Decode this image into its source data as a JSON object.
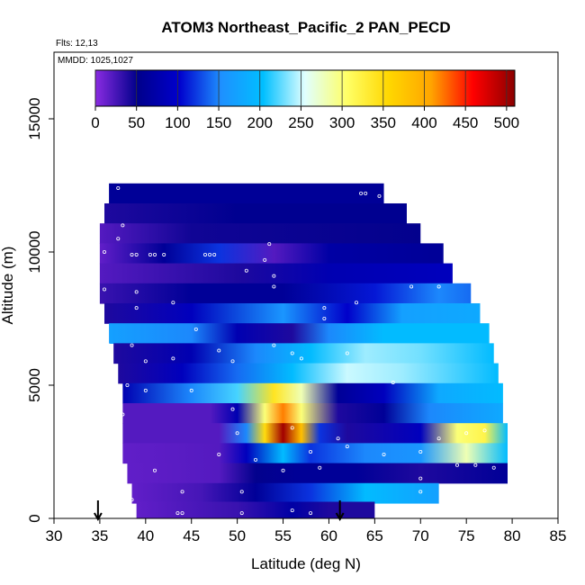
{
  "chart_data": {
    "type": "heatmap",
    "title": "ATOM3 Northeast_Pacific_2 PAN_PECD",
    "annotations": [
      "Flts: 12,13",
      "MMDD: 1025,1027"
    ],
    "xlabel": "Latitude (deg N)",
    "ylabel": "Altitude (m)",
    "xlim": [
      30,
      85
    ],
    "ylim": [
      0,
      17500
    ],
    "x_ticks": [
      30,
      35,
      40,
      45,
      50,
      55,
      60,
      65,
      70,
      75,
      80,
      85
    ],
    "y_ticks": [
      0,
      5000,
      10000,
      15000
    ],
    "colorbar": {
      "min": 0,
      "max": 510,
      "ticks": [
        0,
        50,
        100,
        150,
        200,
        250,
        300,
        350,
        400,
        450,
        500
      ],
      "colors": [
        "#8a2be2",
        "#00008b",
        "#0000cd",
        "#1e90ff",
        "#00bfff",
        "#e0ffff",
        "#ffff66",
        "#ffd700",
        "#ffa500",
        "#ff0000",
        "#8b0000"
      ]
    },
    "flight_arrows_lat": [
      34.8,
      61.2
    ],
    "layers": [
      {
        "alt": 12200,
        "lat_start": 36.0,
        "lat_end": 66.0,
        "values": [
          {
            "lat": 36,
            "v": 60
          },
          {
            "lat": 66,
            "v": 60
          }
        ]
      },
      {
        "alt": 11450,
        "lat_start": 35.5,
        "lat_end": 68.5,
        "values": [
          {
            "lat": 35.5,
            "v": 40
          },
          {
            "lat": 50,
            "v": 55
          },
          {
            "lat": 68.5,
            "v": 55
          }
        ]
      },
      {
        "alt": 10700,
        "lat_start": 35.0,
        "lat_end": 70.0,
        "values": [
          {
            "lat": 35,
            "v": 20
          },
          {
            "lat": 45,
            "v": 45
          },
          {
            "lat": 70,
            "v": 50
          }
        ]
      },
      {
        "alt": 9950,
        "lat_start": 35.0,
        "lat_end": 72.5,
        "values": [
          {
            "lat": 35,
            "v": 15
          },
          {
            "lat": 42,
            "v": 60
          },
          {
            "lat": 48,
            "v": 120
          },
          {
            "lat": 54,
            "v": 20
          },
          {
            "lat": 60,
            "v": 70
          },
          {
            "lat": 72.5,
            "v": 60
          }
        ]
      },
      {
        "alt": 9200,
        "lat_start": 35.0,
        "lat_end": 73.5,
        "values": [
          {
            "lat": 35,
            "v": 20
          },
          {
            "lat": 50,
            "v": 40
          },
          {
            "lat": 60,
            "v": 80
          },
          {
            "lat": 73.5,
            "v": 90
          }
        ]
      },
      {
        "alt": 8450,
        "lat_start": 35.0,
        "lat_end": 75.5,
        "values": [
          {
            "lat": 35,
            "v": 30
          },
          {
            "lat": 45,
            "v": 60
          },
          {
            "lat": 55,
            "v": 60
          },
          {
            "lat": 65,
            "v": 110
          },
          {
            "lat": 72,
            "v": 150
          },
          {
            "lat": 75.5,
            "v": 140
          }
        ]
      },
      {
        "alt": 7700,
        "lat_start": 35.5,
        "lat_end": 76.5,
        "values": [
          {
            "lat": 35.5,
            "v": 40
          },
          {
            "lat": 45,
            "v": 90
          },
          {
            "lat": 55,
            "v": 160
          },
          {
            "lat": 62,
            "v": 100
          },
          {
            "lat": 68,
            "v": 170
          },
          {
            "lat": 76.5,
            "v": 180
          }
        ]
      },
      {
        "alt": 6950,
        "lat_start": 36.0,
        "lat_end": 77.5,
        "values": [
          {
            "lat": 36,
            "v": 170
          },
          {
            "lat": 45,
            "v": 150
          },
          {
            "lat": 50,
            "v": 80
          },
          {
            "lat": 56,
            "v": 40
          },
          {
            "lat": 60,
            "v": 150
          },
          {
            "lat": 66,
            "v": 200
          },
          {
            "lat": 77.5,
            "v": 200
          }
        ]
      },
      {
        "alt": 6200,
        "lat_start": 36.5,
        "lat_end": 78.0,
        "values": [
          {
            "lat": 36.5,
            "v": 40
          },
          {
            "lat": 45,
            "v": 80
          },
          {
            "lat": 52,
            "v": 150
          },
          {
            "lat": 58,
            "v": 200
          },
          {
            "lat": 64,
            "v": 240
          },
          {
            "lat": 70,
            "v": 230
          },
          {
            "lat": 78,
            "v": 200
          }
        ]
      },
      {
        "alt": 5450,
        "lat_start": 37.0,
        "lat_end": 78.5,
        "values": [
          {
            "lat": 37,
            "v": 40
          },
          {
            "lat": 44,
            "v": 90
          },
          {
            "lat": 50,
            "v": 140
          },
          {
            "lat": 56,
            "v": 200
          },
          {
            "lat": 62,
            "v": 250
          },
          {
            "lat": 68,
            "v": 240
          },
          {
            "lat": 78.5,
            "v": 200
          }
        ]
      },
      {
        "alt": 4700,
        "lat_start": 37.5,
        "lat_end": 79.0,
        "values": [
          {
            "lat": 37.5,
            "v": 80
          },
          {
            "lat": 45,
            "v": 150
          },
          {
            "lat": 50,
            "v": 220
          },
          {
            "lat": 54,
            "v": 340
          },
          {
            "lat": 57,
            "v": 280
          },
          {
            "lat": 61,
            "v": 60
          },
          {
            "lat": 66,
            "v": 90
          },
          {
            "lat": 72,
            "v": 180
          },
          {
            "lat": 79,
            "v": 200
          }
        ]
      },
      {
        "alt": 3950,
        "lat_start": 37.5,
        "lat_end": 79.0,
        "values": [
          {
            "lat": 37.5,
            "v": 20
          },
          {
            "lat": 47,
            "v": 20
          },
          {
            "lat": 50,
            "v": 80
          },
          {
            "lat": 53,
            "v": 300
          },
          {
            "lat": 55,
            "v": 420
          },
          {
            "lat": 57,
            "v": 300
          },
          {
            "lat": 61,
            "v": 40
          },
          {
            "lat": 66,
            "v": 60
          },
          {
            "lat": 71,
            "v": 150
          },
          {
            "lat": 79,
            "v": 180
          }
        ]
      },
      {
        "alt": 3200,
        "lat_start": 37.5,
        "lat_end": 79.5,
        "values": [
          {
            "lat": 37.5,
            "v": 20
          },
          {
            "lat": 48,
            "v": 20
          },
          {
            "lat": 51,
            "v": 150
          },
          {
            "lat": 53,
            "v": 350
          },
          {
            "lat": 55,
            "v": 500
          },
          {
            "lat": 57,
            "v": 380
          },
          {
            "lat": 59,
            "v": 120
          },
          {
            "lat": 62,
            "v": 40
          },
          {
            "lat": 70,
            "v": 90
          },
          {
            "lat": 74,
            "v": 300
          },
          {
            "lat": 77,
            "v": 320
          },
          {
            "lat": 79.5,
            "v": 200
          }
        ]
      },
      {
        "alt": 2450,
        "lat_start": 37.5,
        "lat_end": 79.5,
        "values": [
          {
            "lat": 37.5,
            "v": 15
          },
          {
            "lat": 48,
            "v": 20
          },
          {
            "lat": 51,
            "v": 90
          },
          {
            "lat": 55,
            "v": 200
          },
          {
            "lat": 58,
            "v": 120
          },
          {
            "lat": 64,
            "v": 150
          },
          {
            "lat": 70,
            "v": 160
          },
          {
            "lat": 75,
            "v": 280
          },
          {
            "lat": 79.5,
            "v": 200
          }
        ]
      },
      {
        "alt": 1700,
        "lat_start": 38.0,
        "lat_end": 79.5,
        "values": [
          {
            "lat": 38,
            "v": 15
          },
          {
            "lat": 48,
            "v": 20
          },
          {
            "lat": 52,
            "v": 50
          },
          {
            "lat": 57,
            "v": 60
          },
          {
            "lat": 63,
            "v": 60
          },
          {
            "lat": 70,
            "v": 40
          },
          {
            "lat": 79.5,
            "v": 60
          }
        ]
      },
      {
        "alt": 950,
        "lat_start": 38.5,
        "lat_end": 72.0,
        "values": [
          {
            "lat": 38.5,
            "v": 15
          },
          {
            "lat": 46,
            "v": 25
          },
          {
            "lat": 52,
            "v": 60
          },
          {
            "lat": 58,
            "v": 120
          },
          {
            "lat": 64,
            "v": 200
          },
          {
            "lat": 72,
            "v": 170
          }
        ]
      },
      {
        "alt": 250,
        "lat_start": 39.0,
        "lat_end": 65.0,
        "values": [
          {
            "lat": 39,
            "v": 15
          },
          {
            "lat": 50,
            "v": 30
          },
          {
            "lat": 56,
            "v": 70
          },
          {
            "lat": 60,
            "v": 40
          },
          {
            "lat": 65,
            "v": 40
          }
        ]
      }
    ],
    "observations": [
      {
        "lat": 37,
        "alt": 12400
      },
      {
        "lat": 63.5,
        "alt": 12200
      },
      {
        "lat": 64,
        "alt": 12200
      },
      {
        "lat": 65.5,
        "alt": 12100
      },
      {
        "lat": 37.5,
        "alt": 11000
      },
      {
        "lat": 37,
        "alt": 10500
      },
      {
        "lat": 35.5,
        "alt": 10000
      },
      {
        "lat": 38.5,
        "alt": 9900
      },
      {
        "lat": 39,
        "alt": 9900
      },
      {
        "lat": 40.5,
        "alt": 9900
      },
      {
        "lat": 41,
        "alt": 9900
      },
      {
        "lat": 42,
        "alt": 9900
      },
      {
        "lat": 46.5,
        "alt": 9900
      },
      {
        "lat": 47,
        "alt": 9900
      },
      {
        "lat": 47.5,
        "alt": 9900
      },
      {
        "lat": 53,
        "alt": 9700
      },
      {
        "lat": 51,
        "alt": 9300
      },
      {
        "lat": 53.5,
        "alt": 10300
      },
      {
        "lat": 54,
        "alt": 9100
      },
      {
        "lat": 54,
        "alt": 8700
      },
      {
        "lat": 35.5,
        "alt": 8600
      },
      {
        "lat": 39,
        "alt": 8500
      },
      {
        "lat": 69,
        "alt": 8700
      },
      {
        "lat": 72,
        "alt": 8700
      },
      {
        "lat": 43,
        "alt": 8100
      },
      {
        "lat": 39,
        "alt": 7900
      },
      {
        "lat": 59.5,
        "alt": 7900
      },
      {
        "lat": 63,
        "alt": 8100
      },
      {
        "lat": 59.5,
        "alt": 7500
      },
      {
        "lat": 45.5,
        "alt": 7100
      },
      {
        "lat": 36,
        "alt": 6500
      },
      {
        "lat": 38.5,
        "alt": 6500
      },
      {
        "lat": 54,
        "alt": 6500
      },
      {
        "lat": 48,
        "alt": 6300
      },
      {
        "lat": 56,
        "alt": 6200
      },
      {
        "lat": 40,
        "alt": 5900
      },
      {
        "lat": 43,
        "alt": 6000
      },
      {
        "lat": 49.5,
        "alt": 5900
      },
      {
        "lat": 57,
        "alt": 6000
      },
      {
        "lat": 62,
        "alt": 6200
      },
      {
        "lat": 38,
        "alt": 5000
      },
      {
        "lat": 45,
        "alt": 4800
      },
      {
        "lat": 40,
        "alt": 4800
      },
      {
        "lat": 67,
        "alt": 5100
      },
      {
        "lat": 37.5,
        "alt": 3900
      },
      {
        "lat": 49.5,
        "alt": 4100
      },
      {
        "lat": 50,
        "alt": 3200
      },
      {
        "lat": 56,
        "alt": 3400
      },
      {
        "lat": 61,
        "alt": 3000
      },
      {
        "lat": 72,
        "alt": 3000
      },
      {
        "lat": 75,
        "alt": 3200
      },
      {
        "lat": 77,
        "alt": 3300
      },
      {
        "lat": 48,
        "alt": 2400
      },
      {
        "lat": 52,
        "alt": 2200
      },
      {
        "lat": 58,
        "alt": 2500
      },
      {
        "lat": 62,
        "alt": 2700
      },
      {
        "lat": 66,
        "alt": 2400
      },
      {
        "lat": 70,
        "alt": 2500
      },
      {
        "lat": 74,
        "alt": 2000
      },
      {
        "lat": 76,
        "alt": 2000
      },
      {
        "lat": 78,
        "alt": 1900
      },
      {
        "lat": 41,
        "alt": 1800
      },
      {
        "lat": 55,
        "alt": 1800
      },
      {
        "lat": 59,
        "alt": 1900
      },
      {
        "lat": 70,
        "alt": 1500
      },
      {
        "lat": 70,
        "alt": 1000
      },
      {
        "lat": 44,
        "alt": 1000
      },
      {
        "lat": 50.5,
        "alt": 1000
      },
      {
        "lat": 38.5,
        "alt": 700
      },
      {
        "lat": 43.5,
        "alt": 200
      },
      {
        "lat": 44,
        "alt": 200
      },
      {
        "lat": 50.5,
        "alt": 200
      },
      {
        "lat": 56,
        "alt": 300
      },
      {
        "lat": 58,
        "alt": 200
      }
    ]
  }
}
